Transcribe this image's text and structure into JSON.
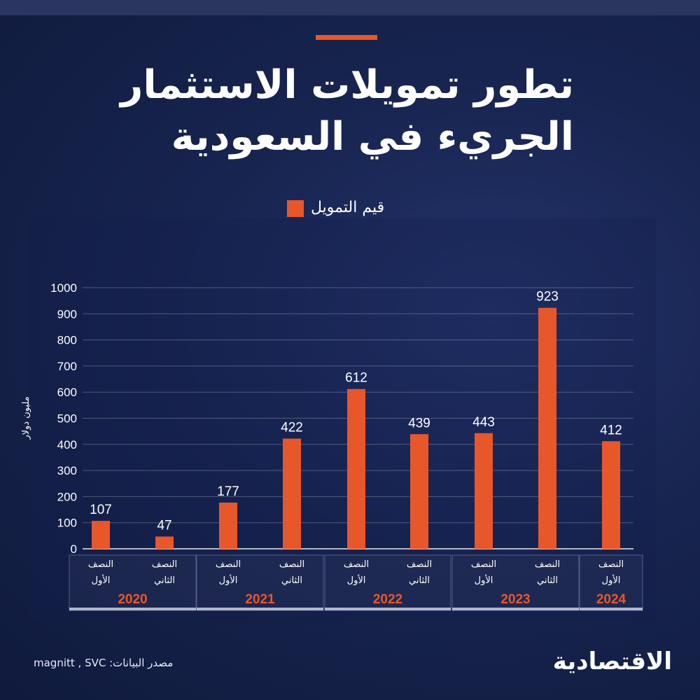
{
  "title": "تطور تمويلات الاستثمار الجريء في السعودية",
  "legend": {
    "label": "قيم التمويل",
    "color": "#e8572a"
  },
  "source": "مصدر البيانات: magnitt , SVC",
  "brand": "الاقتصادية",
  "chart_data": {
    "type": "bar",
    "ylabel": "مليون دولار",
    "ylim": [
      0,
      1000
    ],
    "yticks": [
      0,
      100,
      200,
      300,
      400,
      500,
      600,
      700,
      800,
      900,
      1000
    ],
    "bar_color": "#e8572a",
    "categories": [
      {
        "line1": "النصف",
        "line2": "الأول"
      },
      {
        "line1": "النصف",
        "line2": "الثاني"
      },
      {
        "line1": "النصف",
        "line2": "الأول"
      },
      {
        "line1": "النصف",
        "line2": "الثاني"
      },
      {
        "line1": "النصف",
        "line2": "الأول"
      },
      {
        "line1": "النصف",
        "line2": "الثاني"
      },
      {
        "line1": "النصف",
        "line2": "الأول"
      },
      {
        "line1": "النصف",
        "line2": "الثاني"
      },
      {
        "line1": "النصف",
        "line2": "الأول"
      }
    ],
    "values": [
      107,
      47,
      177,
      422,
      612,
      439,
      443,
      923,
      412
    ],
    "groups": [
      {
        "year": "2020",
        "count": 2
      },
      {
        "year": "2021",
        "count": 2
      },
      {
        "year": "2022",
        "count": 2
      },
      {
        "year": "2023",
        "count": 2
      },
      {
        "year": "2024",
        "count": 1
      }
    ],
    "year_color": "#e8572a"
  }
}
